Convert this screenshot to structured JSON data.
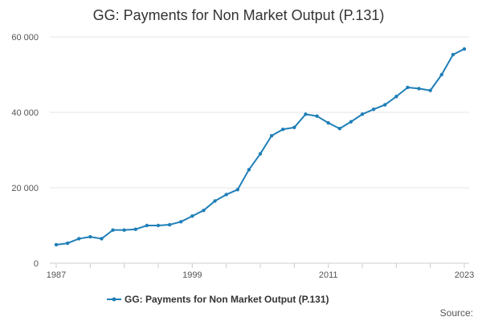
{
  "chart_data": {
    "type": "line",
    "title": "GG: Payments for Non Market Output (P.131)",
    "xlabel": "",
    "ylabel": "",
    "x": [
      1987,
      1988,
      1989,
      1990,
      1991,
      1992,
      1993,
      1994,
      1995,
      1996,
      1997,
      1998,
      1999,
      2000,
      2001,
      2002,
      2003,
      2004,
      2005,
      2006,
      2007,
      2008,
      2009,
      2010,
      2011,
      2012,
      2013,
      2014,
      2015,
      2016,
      2017,
      2018,
      2019,
      2020,
      2021,
      2022,
      2023
    ],
    "series": [
      {
        "name": "GG: Payments for Non Market Output (P.131)",
        "color": "#1f7fb8",
        "values": [
          4900,
          5300,
          6500,
          7000,
          6500,
          8800,
          8800,
          9000,
          10000,
          10000,
          10200,
          11000,
          12500,
          14000,
          16500,
          18200,
          19500,
          24800,
          29000,
          33800,
          35500,
          36000,
          39500,
          39000,
          37200,
          35700,
          37500,
          39500,
          40800,
          42000,
          44200,
          46600,
          46300,
          45800,
          50000,
          55300,
          56800
        ]
      }
    ],
    "x_tick_labels": [
      "1987",
      "1999",
      "2011",
      "2023"
    ],
    "y_tick_labels": [
      "0",
      "20 000",
      "40 000",
      "60 000"
    ],
    "xlim": [
      1987,
      2023
    ],
    "ylim": [
      0,
      60000
    ],
    "grid": "horizontal",
    "legend_position": "bottom",
    "source_label": "Source:"
  }
}
